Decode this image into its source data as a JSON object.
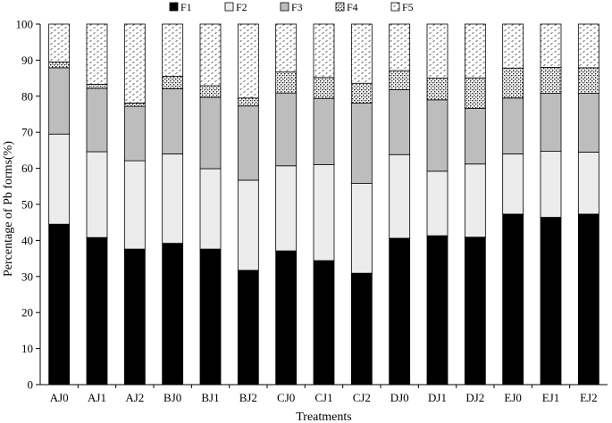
{
  "chart_data": {
    "type": "bar",
    "stacked": true,
    "xlabel": "Treatments",
    "ylabel": "Percentage of Pb forms(%)",
    "ylim": [
      0,
      100
    ],
    "yticks": [
      0,
      10,
      20,
      30,
      40,
      50,
      60,
      70,
      80,
      90,
      100
    ],
    "grid": false,
    "legend_position": "top",
    "categories": [
      "AJ0",
      "AJ1",
      "AJ2",
      "BJ0",
      "BJ1",
      "BJ2",
      "CJ0",
      "CJ1",
      "CJ2",
      "DJ0",
      "DJ1",
      "DJ2",
      "EJ0",
      "EJ1",
      "EJ2"
    ],
    "series": [
      {
        "name": "F1",
        "fill": "#000000",
        "pattern": "solid",
        "values": [
          44.5,
          40.8,
          37.6,
          39.2,
          37.6,
          31.7,
          37.1,
          34.4,
          30.9,
          40.6,
          41.3,
          40.9,
          47.3,
          46.4,
          47.3
        ]
      },
      {
        "name": "F2",
        "fill": "#ececec",
        "pattern": "solid",
        "values": [
          25.0,
          23.8,
          24.5,
          24.8,
          22.3,
          25.0,
          23.6,
          26.6,
          24.9,
          23.2,
          17.9,
          20.3,
          16.7,
          18.3,
          17.2
        ]
      },
      {
        "name": "F3",
        "fill": "#bdbdbd",
        "pattern": "solid",
        "values": [
          18.4,
          17.6,
          15.1,
          18.1,
          19.8,
          20.6,
          20.2,
          18.4,
          22.3,
          18.0,
          19.8,
          15.4,
          15.5,
          16.1,
          16.3
        ]
      },
      {
        "name": "F4",
        "fill": "#ffffff",
        "pattern": "dense-dots",
        "values": [
          1.6,
          1.1,
          0.9,
          3.4,
          3.2,
          2.2,
          5.8,
          5.8,
          5.5,
          5.3,
          6.0,
          8.5,
          8.3,
          7.2,
          7.1
        ]
      },
      {
        "name": "F5",
        "fill": "#ffffff",
        "pattern": "sparse-dashes",
        "values": [
          10.5,
          16.7,
          21.9,
          14.5,
          17.1,
          20.5,
          13.3,
          14.8,
          16.4,
          12.9,
          15.0,
          14.9,
          12.2,
          12.0,
          12.1
        ]
      }
    ]
  }
}
